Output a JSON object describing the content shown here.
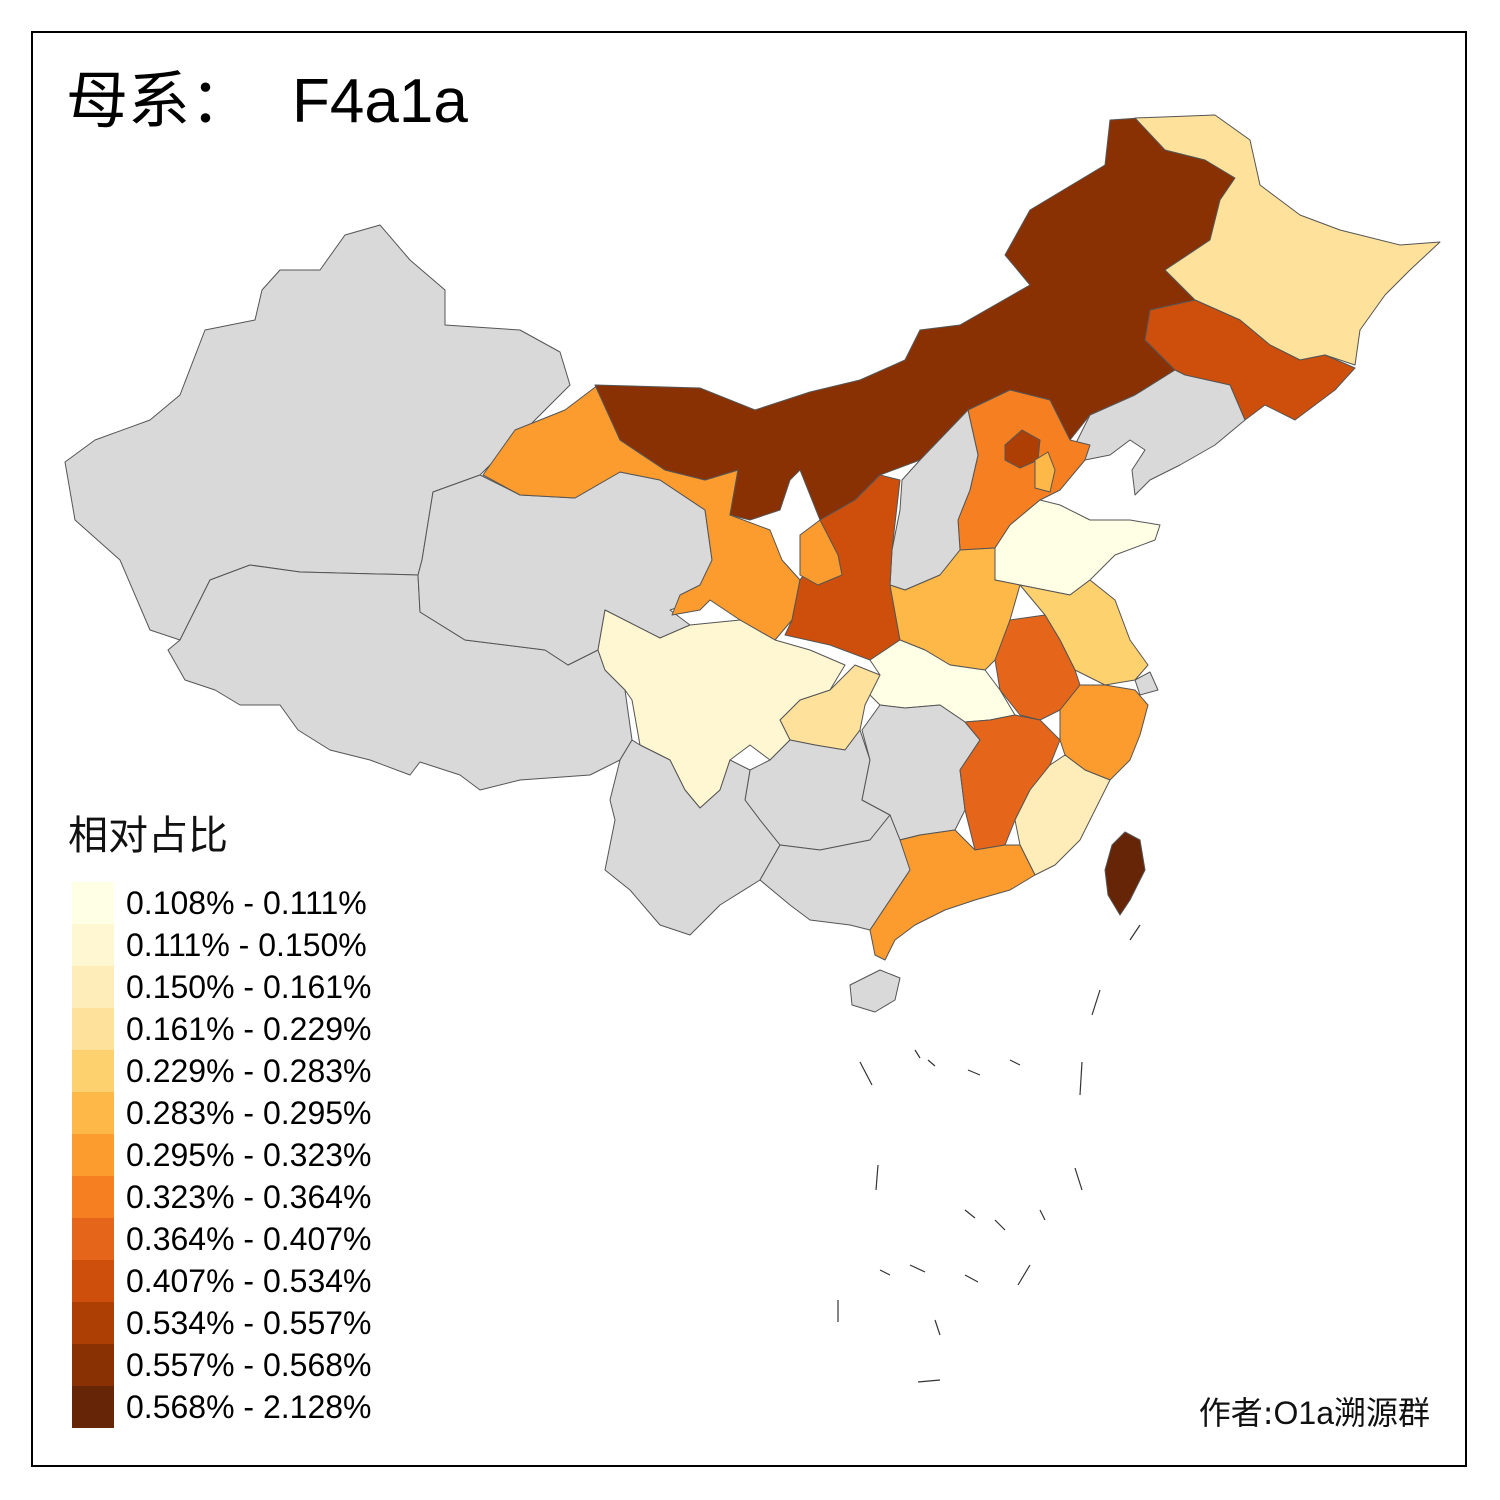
{
  "title": {
    "prefix": "母系：",
    "code": "F4a1a"
  },
  "legend": {
    "title": "相对占比",
    "classes": [
      {
        "label": "0.108% - 0.111%",
        "color": "#ffffe5"
      },
      {
        "label": "0.111% - 0.150%",
        "color": "#fff6d2"
      },
      {
        "label": "0.150% - 0.161%",
        "color": "#feedb8"
      },
      {
        "label": "0.161% - 0.229%",
        "color": "#fee29c"
      },
      {
        "label": "0.229% - 0.283%",
        "color": "#fed16f"
      },
      {
        "label": "0.283% - 0.295%",
        "color": "#feb847"
      },
      {
        "label": "0.295% - 0.323%",
        "color": "#fc9b2e"
      },
      {
        "label": "0.323% - 0.364%",
        "color": "#f67f22"
      },
      {
        "label": "0.364% - 0.407%",
        "color": "#e5661a"
      },
      {
        "label": "0.407% - 0.534%",
        "color": "#cd4f0b"
      },
      {
        "label": "0.534% - 0.557%",
        "color": "#ad3f05"
      },
      {
        "label": "0.557% - 0.568%",
        "color": "#8a3104"
      },
      {
        "label": "0.568% - 2.128%",
        "color": "#662506"
      }
    ]
  },
  "no_data_color": "#d9d9d9",
  "credit": {
    "prefix": "作者:",
    "group": "O1a",
    "suffix": "溯源群"
  },
  "regions": [
    {
      "name": "Heilongjiang",
      "class": 3
    },
    {
      "name": "Jilin",
      "class": 9
    },
    {
      "name": "Liaoning",
      "class": null
    },
    {
      "name": "Inner Mongolia",
      "class": 11
    },
    {
      "name": "Beijing",
      "class": 10
    },
    {
      "name": "Tianjin",
      "class": 5
    },
    {
      "name": "Hebei",
      "class": 7
    },
    {
      "name": "Shanxi",
      "class": null
    },
    {
      "name": "Shaanxi",
      "class": 9
    },
    {
      "name": "Ningxia",
      "class": 6
    },
    {
      "name": "Gansu",
      "class": 6
    },
    {
      "name": "Xinjiang",
      "class": null
    },
    {
      "name": "Qinghai",
      "class": null
    },
    {
      "name": "Tibet",
      "class": null
    },
    {
      "name": "Sichuan",
      "class": 1
    },
    {
      "name": "Chongqing",
      "class": 3
    },
    {
      "name": "Yunnan",
      "class": null
    },
    {
      "name": "Guizhou",
      "class": null
    },
    {
      "name": "Guangxi",
      "class": null
    },
    {
      "name": "Guangdong",
      "class": 6
    },
    {
      "name": "Hainan",
      "class": null
    },
    {
      "name": "Hunan",
      "class": null
    },
    {
      "name": "Hubei",
      "class": 0
    },
    {
      "name": "Henan",
      "class": 5
    },
    {
      "name": "Shandong",
      "class": 0
    },
    {
      "name": "Jiangsu",
      "class": 4
    },
    {
      "name": "Shanghai",
      "class": null
    },
    {
      "name": "Anhui",
      "class": 8
    },
    {
      "name": "Jiangxi",
      "class": 8
    },
    {
      "name": "Zhejiang",
      "class": 6
    },
    {
      "name": "Fujian",
      "class": 2
    },
    {
      "name": "Taiwan",
      "class": 12
    }
  ]
}
